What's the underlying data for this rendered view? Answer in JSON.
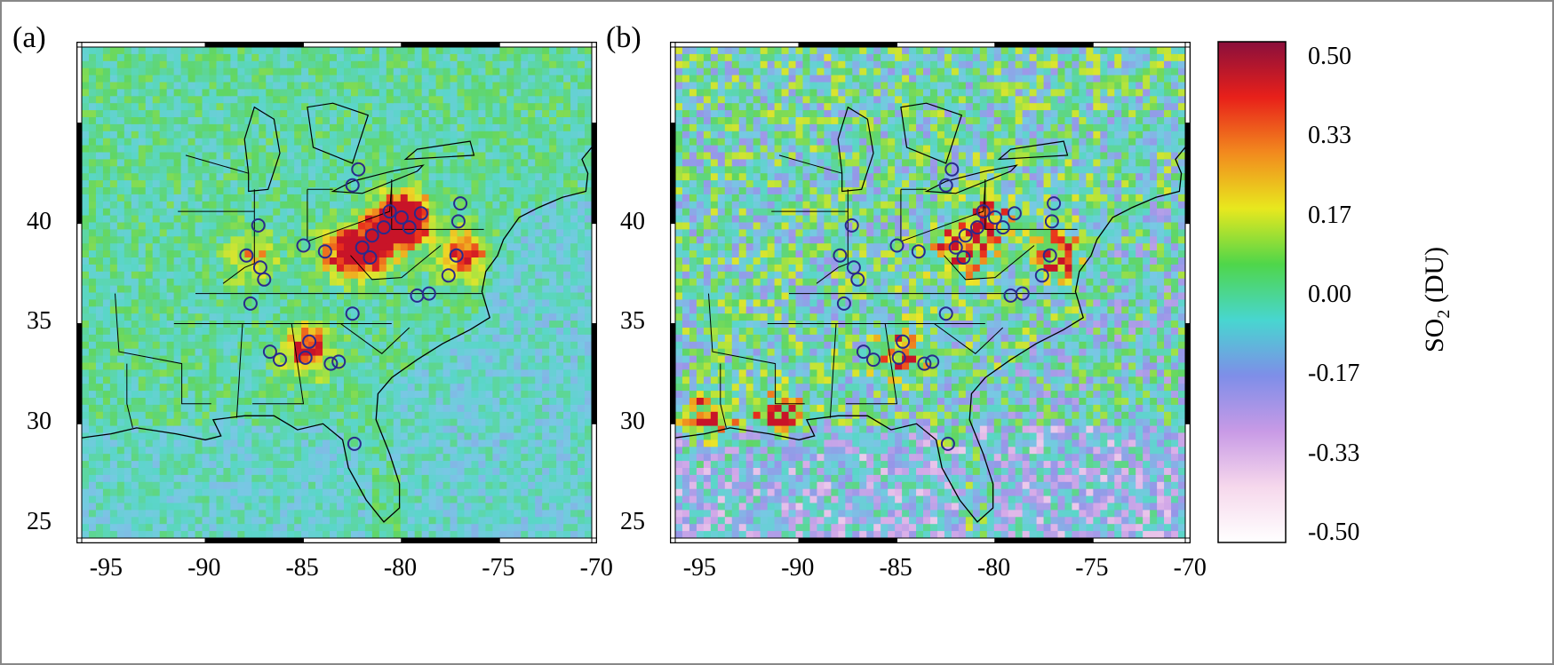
{
  "figure": {
    "panels": [
      {
        "id": "a",
        "label": "(a)"
      },
      {
        "id": "b",
        "label": "(b)"
      }
    ],
    "x_ticks": [
      "-95",
      "-90",
      "-85",
      "-80",
      "-75",
      "-70"
    ],
    "y_ticks": [
      "40",
      "35",
      "30",
      "25"
    ],
    "colorbar": {
      "title_main": "SO",
      "title_sub": "2",
      "title_unit": " (DU)",
      "tick_labels": [
        "0.50",
        "0.33",
        "0.17",
        "0.00",
        "-0.17",
        "-0.33",
        "-0.50"
      ],
      "colors": [
        "#8a0f3c",
        "#e8201a",
        "#f28a1e",
        "#e8e81e",
        "#4fd64a",
        "#48d6d0",
        "#7e8ee8",
        "#c89ae6",
        "#f6d8ec",
        "#ffffff"
      ]
    }
  },
  "chart_data": {
    "type": "heatmap",
    "title": "",
    "xlabel": "",
    "ylabel": "",
    "xlim": [
      -96.3,
      -70.3
    ],
    "ylim": [
      24.3,
      48.8
    ],
    "x_ticks": [
      -95,
      -90,
      -85,
      -80,
      -75,
      -70
    ],
    "y_ticks": [
      25,
      30,
      35,
      40
    ],
    "colorbar": {
      "label": "SO2 (DU)",
      "range": [
        -0.5,
        0.5
      ],
      "ticks": [
        0.5,
        0.33,
        0.17,
        0.0,
        -0.17,
        -0.33,
        -0.5
      ]
    },
    "panels": [
      {
        "label": "(a)",
        "background_mean_DU": 0.03,
        "hotspots": [
          {
            "lon": -80.5,
            "lat": 40.0,
            "value": 0.5
          },
          {
            "lon": -81.8,
            "lat": 38.6,
            "value": 0.48
          },
          {
            "lon": -79.6,
            "lat": 40.3,
            "value": 0.5
          },
          {
            "lon": -76.8,
            "lat": 38.4,
            "value": 0.45
          },
          {
            "lon": -84.8,
            "lat": 33.7,
            "value": 0.45
          },
          {
            "lon": -83.2,
            "lat": 38.6,
            "value": 0.35
          },
          {
            "lon": -87.6,
            "lat": 38.2,
            "value": 0.3
          }
        ]
      },
      {
        "label": "(b)",
        "background_mean_DU": 0.0,
        "hotspots": [
          {
            "lon": -80.5,
            "lat": 40.0,
            "value": 0.45
          },
          {
            "lon": -82.0,
            "lat": 38.5,
            "value": 0.4
          },
          {
            "lon": -76.8,
            "lat": 38.4,
            "value": 0.42
          },
          {
            "lon": -84.8,
            "lat": 33.5,
            "value": 0.4
          },
          {
            "lon": -94.5,
            "lat": 30.1,
            "value": 0.5
          },
          {
            "lon": -91.0,
            "lat": 30.2,
            "value": 0.45
          }
        ]
      }
    ],
    "sites": [
      {
        "lon": -82.2,
        "lat": 42.7
      },
      {
        "lon": -82.5,
        "lat": 41.9
      },
      {
        "lon": -80.6,
        "lat": 40.6
      },
      {
        "lon": -80.0,
        "lat": 40.3
      },
      {
        "lon": -79.0,
        "lat": 40.5
      },
      {
        "lon": -79.6,
        "lat": 39.8
      },
      {
        "lon": -80.9,
        "lat": 39.8
      },
      {
        "lon": -81.5,
        "lat": 39.4
      },
      {
        "lon": -82.0,
        "lat": 38.8
      },
      {
        "lon": -81.6,
        "lat": 38.3
      },
      {
        "lon": -77.0,
        "lat": 41.0
      },
      {
        "lon": -77.1,
        "lat": 40.1
      },
      {
        "lon": -83.9,
        "lat": 38.6
      },
      {
        "lon": -85.0,
        "lat": 38.9
      },
      {
        "lon": -87.3,
        "lat": 39.9
      },
      {
        "lon": -87.9,
        "lat": 38.4
      },
      {
        "lon": -87.2,
        "lat": 37.8
      },
      {
        "lon": -87.0,
        "lat": 37.2
      },
      {
        "lon": -77.2,
        "lat": 38.4
      },
      {
        "lon": -77.6,
        "lat": 37.4
      },
      {
        "lon": -79.2,
        "lat": 36.4
      },
      {
        "lon": -78.6,
        "lat": 36.5
      },
      {
        "lon": -82.5,
        "lat": 35.5
      },
      {
        "lon": -87.7,
        "lat": 36.0
      },
      {
        "lon": -86.7,
        "lat": 33.6
      },
      {
        "lon": -86.2,
        "lat": 33.2
      },
      {
        "lon": -84.9,
        "lat": 33.3
      },
      {
        "lon": -84.7,
        "lat": 34.1
      },
      {
        "lon": -83.6,
        "lat": 33.0
      },
      {
        "lon": -83.2,
        "lat": 33.1
      },
      {
        "lon": -82.4,
        "lat": 29.0
      }
    ]
  }
}
